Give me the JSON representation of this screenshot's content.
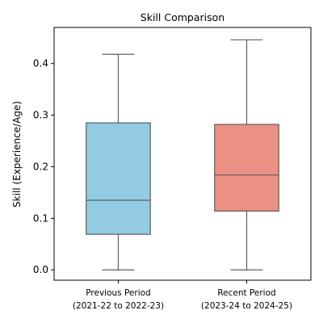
{
  "chart_data": {
    "type": "box",
    "title": "Skill Comparison",
    "xlabel": "",
    "ylabel": "Skill (Experience/Age)",
    "ylim": [
      -0.02,
      0.47
    ],
    "yticks": [
      {
        "value": 0.0,
        "label": "0.0"
      },
      {
        "value": 0.1,
        "label": "0.1"
      },
      {
        "value": 0.2,
        "label": "0.2"
      },
      {
        "value": 0.3,
        "label": "0.3"
      },
      {
        "value": 0.4,
        "label": "0.4"
      }
    ],
    "grid": false,
    "legend": "none",
    "categories": [
      {
        "line1": "Previous Period",
        "line2": "(2021-22 to 2022-23)"
      },
      {
        "line1": "Recent Period",
        "line2": "(2023-24 to 2024-25)"
      }
    ],
    "boxes": [
      {
        "min": 0.0,
        "q1": 0.069,
        "median": 0.135,
        "q3": 0.285,
        "max": 0.418,
        "color": "#93CBE2"
      },
      {
        "min": 0.0,
        "q1": 0.114,
        "median": 0.184,
        "q3": 0.282,
        "max": 0.446,
        "color": "#EC9084"
      }
    ],
    "line_color": "#5f5f5f"
  }
}
